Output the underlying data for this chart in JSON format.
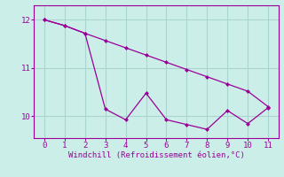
{
  "line1_x": [
    0,
    1,
    2,
    3,
    4,
    5,
    6,
    7,
    8,
    9,
    10,
    11
  ],
  "line1_y": [
    12.0,
    11.88,
    11.72,
    11.57,
    11.42,
    11.27,
    11.12,
    10.97,
    10.82,
    10.67,
    10.52,
    10.2
  ],
  "line2_x": [
    0,
    1,
    2,
    3,
    4,
    5,
    6,
    7,
    8,
    9,
    10,
    11
  ],
  "line2_y": [
    12.0,
    11.88,
    11.72,
    10.15,
    9.93,
    10.48,
    9.93,
    9.83,
    9.73,
    10.12,
    9.85,
    10.18
  ],
  "line_color": "#990099",
  "bg_color": "#cceee8",
  "grid_color": "#aad4ce",
  "xlabel": "Windchill (Refroidissement éolien,°C)",
  "xlabel_color": "#990099",
  "ylim": [
    9.55,
    12.3
  ],
  "xlim": [
    -0.5,
    11.5
  ],
  "ytick_major": [
    10,
    11,
    12
  ],
  "xtick_major": [
    0,
    1,
    2,
    3,
    4,
    5,
    6,
    7,
    8,
    9,
    10,
    11
  ]
}
